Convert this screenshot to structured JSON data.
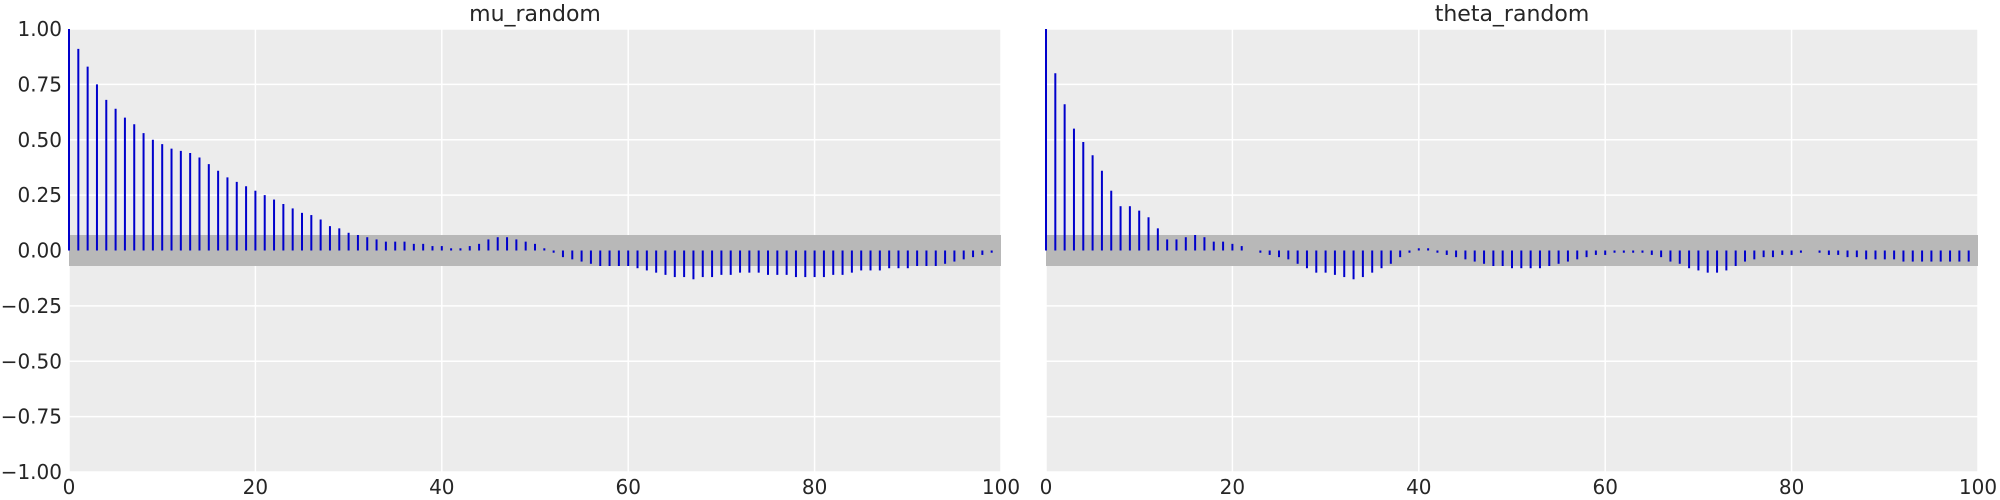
{
  "chart_data": [
    {
      "type": "bar",
      "title": "mu_random",
      "xlabel": "",
      "ylabel": "",
      "xlim": [
        0,
        100
      ],
      "ylim": [
        -1.0,
        1.0
      ],
      "xticks": [
        "0",
        "20",
        "40",
        "60",
        "80",
        "100"
      ],
      "yticks": [
        "1.00",
        "0.75",
        "0.50",
        "0.25",
        "0.00",
        "−0.25",
        "−0.50",
        "−0.75",
        "−1.00"
      ],
      "grid": true,
      "confidence_band": [
        -0.07,
        0.07
      ],
      "lags": [
        0,
        1,
        2,
        3,
        4,
        5,
        6,
        7,
        8,
        9,
        10,
        11,
        12,
        13,
        14,
        15,
        16,
        17,
        18,
        19,
        20,
        21,
        22,
        23,
        24,
        25,
        26,
        27,
        28,
        29,
        30,
        31,
        32,
        33,
        34,
        35,
        36,
        37,
        38,
        39,
        40,
        41,
        42,
        43,
        44,
        45,
        46,
        47,
        48,
        49,
        50,
        51,
        52,
        53,
        54,
        55,
        56,
        57,
        58,
        59,
        60,
        61,
        62,
        63,
        64,
        65,
        66,
        67,
        68,
        69,
        70,
        71,
        72,
        73,
        74,
        75,
        76,
        77,
        78,
        79,
        80,
        81,
        82,
        83,
        84,
        85,
        86,
        87,
        88,
        89,
        90,
        91,
        92,
        93,
        94,
        95,
        96,
        97,
        98,
        99
      ],
      "values": [
        1.0,
        0.91,
        0.83,
        0.75,
        0.68,
        0.64,
        0.6,
        0.57,
        0.53,
        0.5,
        0.48,
        0.46,
        0.45,
        0.44,
        0.42,
        0.39,
        0.36,
        0.33,
        0.31,
        0.29,
        0.27,
        0.25,
        0.23,
        0.21,
        0.19,
        0.17,
        0.16,
        0.14,
        0.11,
        0.1,
        0.08,
        0.07,
        0.06,
        0.05,
        0.04,
        0.04,
        0.04,
        0.03,
        0.03,
        0.02,
        0.02,
        0.01,
        0.01,
        0.02,
        0.03,
        0.05,
        0.06,
        0.06,
        0.05,
        0.04,
        0.03,
        0.01,
        -0.01,
        -0.03,
        -0.04,
        -0.05,
        -0.06,
        -0.07,
        -0.07,
        -0.07,
        -0.07,
        -0.08,
        -0.09,
        -0.1,
        -0.11,
        -0.12,
        -0.12,
        -0.13,
        -0.12,
        -0.12,
        -0.11,
        -0.11,
        -0.1,
        -0.1,
        -0.1,
        -0.11,
        -0.11,
        -0.11,
        -0.12,
        -0.12,
        -0.12,
        -0.12,
        -0.11,
        -0.11,
        -0.1,
        -0.09,
        -0.09,
        -0.09,
        -0.08,
        -0.08,
        -0.08,
        -0.07,
        -0.07,
        -0.07,
        -0.06,
        -0.05,
        -0.04,
        -0.03,
        -0.02,
        -0.01
      ]
    },
    {
      "type": "bar",
      "title": "theta_random",
      "xlabel": "",
      "ylabel": "",
      "xlim": [
        0,
        100
      ],
      "ylim": [
        -1.0,
        1.0
      ],
      "xticks": [
        "0",
        "20",
        "40",
        "60",
        "80",
        "100"
      ],
      "grid": true,
      "confidence_band": [
        -0.07,
        0.07
      ],
      "lags": [
        0,
        1,
        2,
        3,
        4,
        5,
        6,
        7,
        8,
        9,
        10,
        11,
        12,
        13,
        14,
        15,
        16,
        17,
        18,
        19,
        20,
        21,
        22,
        23,
        24,
        25,
        26,
        27,
        28,
        29,
        30,
        31,
        32,
        33,
        34,
        35,
        36,
        37,
        38,
        39,
        40,
        41,
        42,
        43,
        44,
        45,
        46,
        47,
        48,
        49,
        50,
        51,
        52,
        53,
        54,
        55,
        56,
        57,
        58,
        59,
        60,
        61,
        62,
        63,
        64,
        65,
        66,
        67,
        68,
        69,
        70,
        71,
        72,
        73,
        74,
        75,
        76,
        77,
        78,
        79,
        80,
        81,
        82,
        83,
        84,
        85,
        86,
        87,
        88,
        89,
        90,
        91,
        92,
        93,
        94,
        95,
        96,
        97,
        98,
        99
      ],
      "values": [
        1.0,
        0.8,
        0.66,
        0.55,
        0.49,
        0.43,
        0.36,
        0.27,
        0.2,
        0.2,
        0.18,
        0.15,
        0.1,
        0.05,
        0.05,
        0.06,
        0.07,
        0.06,
        0.04,
        0.04,
        0.03,
        0.02,
        0.0,
        -0.01,
        -0.02,
        -0.03,
        -0.04,
        -0.06,
        -0.08,
        -0.1,
        -0.1,
        -0.11,
        -0.12,
        -0.13,
        -0.12,
        -0.1,
        -0.08,
        -0.06,
        -0.03,
        -0.01,
        0.01,
        0.01,
        -0.01,
        -0.02,
        -0.03,
        -0.04,
        -0.05,
        -0.06,
        -0.07,
        -0.07,
        -0.08,
        -0.08,
        -0.08,
        -0.08,
        -0.07,
        -0.06,
        -0.05,
        -0.04,
        -0.03,
        -0.02,
        -0.02,
        -0.01,
        -0.01,
        -0.01,
        -0.01,
        -0.02,
        -0.03,
        -0.05,
        -0.06,
        -0.08,
        -0.09,
        -0.1,
        -0.1,
        -0.09,
        -0.07,
        -0.05,
        -0.04,
        -0.03,
        -0.03,
        -0.02,
        -0.02,
        -0.01,
        0.0,
        -0.01,
        -0.02,
        -0.02,
        -0.03,
        -0.03,
        -0.04,
        -0.04,
        -0.04,
        -0.04,
        -0.05,
        -0.05,
        -0.05,
        -0.05,
        -0.05,
        -0.05,
        -0.05,
        -0.05
      ]
    }
  ],
  "colors": {
    "bar": "#0000cc",
    "band": "#b8b8b8",
    "axes_bg": "#ececec",
    "grid": "#ffffff",
    "text": "#262626"
  }
}
